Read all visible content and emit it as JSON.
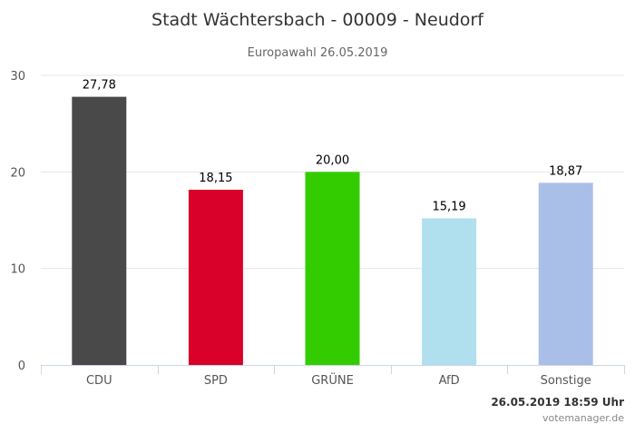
{
  "chart_data": {
    "type": "bar",
    "title": "Stadt Wächtersbach - 00009 - Neudorf",
    "subtitle": "Europawahl 26.05.2019",
    "categories": [
      "CDU",
      "SPD",
      "GRÜNE",
      "AfD",
      "Sonstige"
    ],
    "values": [
      27.78,
      18.15,
      20.0,
      15.19,
      18.87
    ],
    "data_labels": [
      "27,78",
      "18,15",
      "20,00",
      "15,19",
      "18,87"
    ],
    "colors": [
      "#494949",
      "#d9002a",
      "#33cc00",
      "#b0dfee",
      "#aabfe8"
    ],
    "ylim": [
      0,
      30
    ],
    "yticks": [
      0,
      10,
      20,
      30
    ],
    "grid": true,
    "xlabel": "",
    "ylabel": ""
  },
  "footer": {
    "timestamp": "26.05.2019 18:59 Uhr",
    "credit": "votemanager.de"
  }
}
